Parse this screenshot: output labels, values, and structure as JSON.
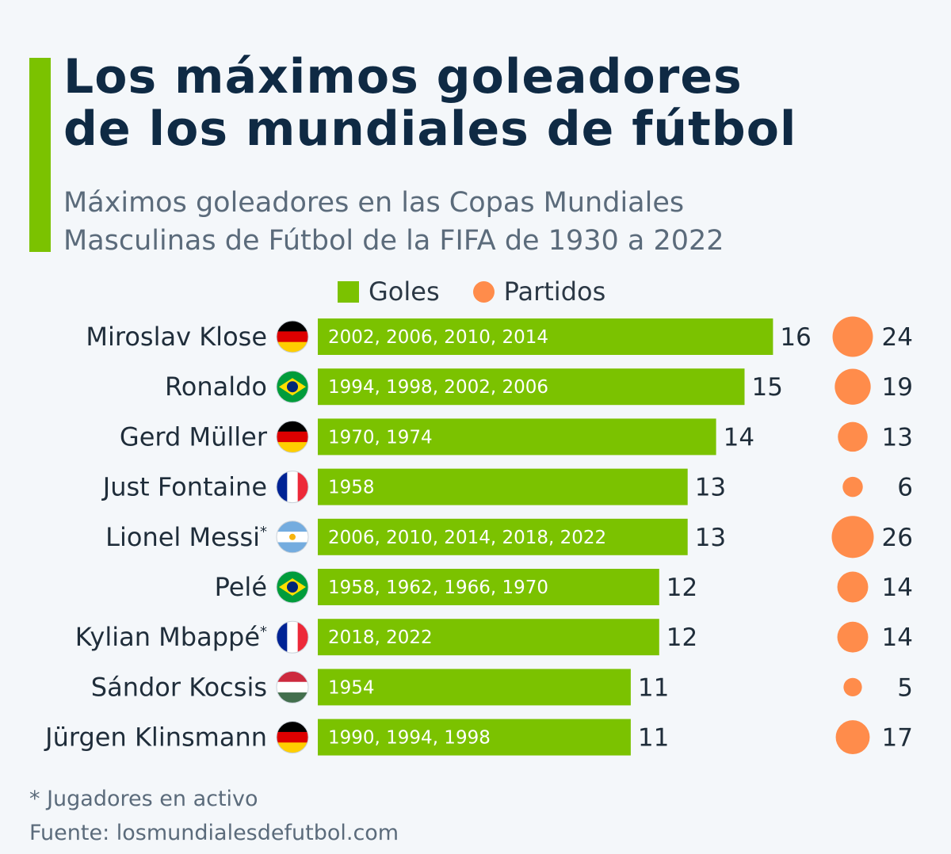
{
  "header": {
    "title_line1": "Los máximos goleadores",
    "title_line2": "de los mundiales de fútbol",
    "subtitle_line1": "Máximos goleadores en las Copas Mundiales",
    "subtitle_line2": "Masculinas de Fútbol de la FIFA de 1930 a 2022"
  },
  "legend": {
    "goals": "Goles",
    "matches": "Partidos"
  },
  "colors": {
    "bar": "#7bc200",
    "bubble": "#ff8c4b",
    "accent": "#7bc200",
    "title": "#0f2a44"
  },
  "chart_data": {
    "type": "bar",
    "orientation": "horizontal",
    "categories": [
      "Miroslav Klose",
      "Ronaldo",
      "Gerd Müller",
      "Just Fontaine",
      "Lionel Messi",
      "Pelé",
      "Kylian Mbappé",
      "Sándor Kocsis",
      "Jürgen Klinsmann"
    ],
    "active_marker": [
      false,
      false,
      false,
      false,
      true,
      false,
      true,
      false,
      false
    ],
    "flags": [
      "germany",
      "brazil",
      "germany",
      "france",
      "argentina",
      "brazil",
      "france",
      "hungary",
      "germany"
    ],
    "editions": [
      "2002, 2006, 2010, 2014",
      "1994, 1998, 2002, 2006",
      "1970, 1974",
      "1958",
      "2006, 2010, 2014, 2018, 2022",
      "1958, 1962, 1966, 1970",
      "2018, 2022",
      "1954",
      "1990, 1994, 1998"
    ],
    "series": [
      {
        "name": "Goles",
        "values": [
          16,
          15,
          14,
          13,
          13,
          12,
          12,
          11,
          11
        ]
      },
      {
        "name": "Partidos",
        "values": [
          24,
          19,
          13,
          6,
          26,
          14,
          14,
          5,
          17
        ]
      }
    ]
  },
  "footer": {
    "footnote": "* Jugadores en activo",
    "source": "Fuente: losmundialesdefutbol.com"
  }
}
